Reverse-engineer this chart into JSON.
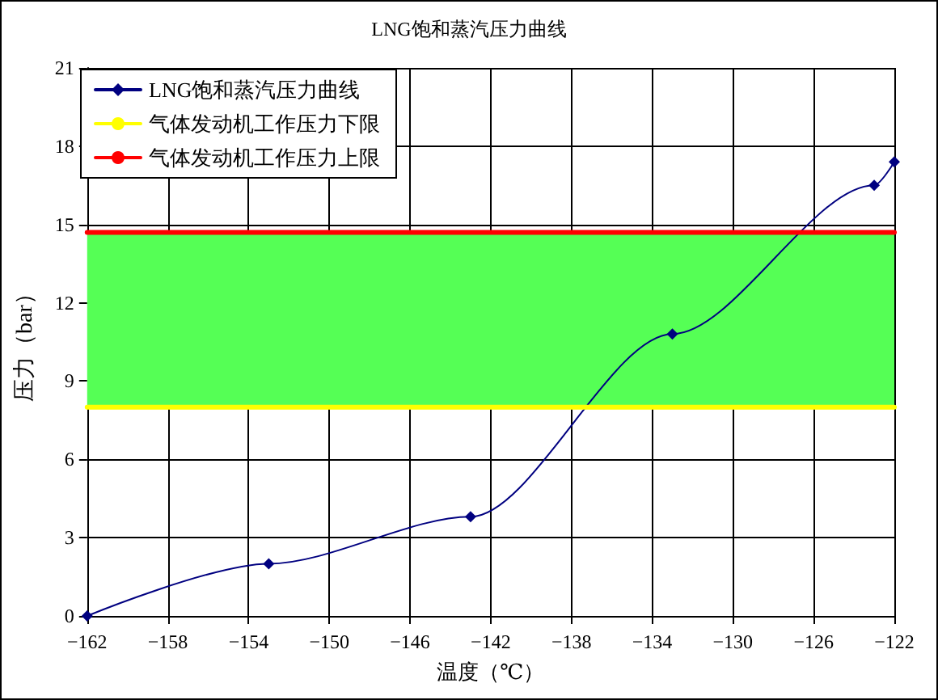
{
  "chart_data": {
    "type": "line",
    "title": "LNG饱和蒸汽压力曲线",
    "xlabel": "温度（℃）",
    "ylabel": "压力（bar）",
    "series": [
      {
        "name": "LNG饱和蒸汽压力曲线",
        "color": "#000080",
        "x": [
          -162,
          -153,
          -143,
          -133,
          -123,
          -122
        ],
        "values": [
          0,
          2,
          3.8,
          10.8,
          16.5,
          17.4
        ],
        "marker": "diamond"
      },
      {
        "name": "气体发动机工作压力下限",
        "color": "#ffff00",
        "x": [
          -162,
          -122
        ],
        "values": [
          8,
          8
        ],
        "marker": "none"
      },
      {
        "name": "气体发动机工作压力上限",
        "color": "#ff0000",
        "x": [
          -162,
          -122
        ],
        "values": [
          14.7,
          14.7
        ],
        "marker": "none"
      }
    ],
    "bands": [
      {
        "axis": "y",
        "from": 8,
        "to": 14.7,
        "color": "#55ff55"
      }
    ],
    "xlim": [
      -162,
      -122
    ],
    "xticks": [
      -162,
      -158,
      -154,
      -150,
      -146,
      -142,
      -138,
      -134,
      -130,
      -126,
      -122
    ],
    "ylim": [
      0,
      21
    ],
    "yticks": [
      0,
      3,
      6,
      9,
      12,
      15,
      18,
      21
    ],
    "grid": true,
    "legend": "top left",
    "line_style": "solid"
  }
}
